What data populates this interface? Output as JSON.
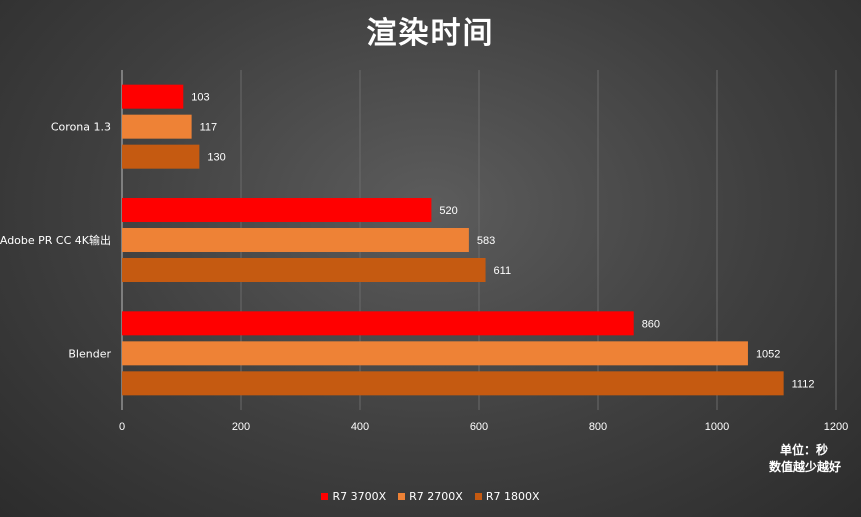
{
  "chart_data": {
    "type": "bar",
    "orientation": "horizontal",
    "title": "渲染时间",
    "categories": [
      "Corona 1.3",
      "Adobe PR CC 4K输出",
      "Blender"
    ],
    "series": [
      {
        "name": "R7 3700X",
        "color": "#ff0000",
        "values": [
          103,
          520,
          860
        ]
      },
      {
        "name": "R7 2700X",
        "color": "#ee8236",
        "values": [
          117,
          583,
          1052
        ]
      },
      {
        "name": "R7 1800X",
        "color": "#c55a11",
        "values": [
          130,
          611,
          1112
        ]
      }
    ],
    "x_ticks": [
      0,
      200,
      400,
      600,
      800,
      1000,
      1200
    ],
    "xlim": [
      0,
      1200
    ],
    "grid": "vertical",
    "legend_position": "bottom-center",
    "data_labels": true
  },
  "notes": {
    "unit": "单位：秒",
    "hint": "数值越少越好"
  }
}
